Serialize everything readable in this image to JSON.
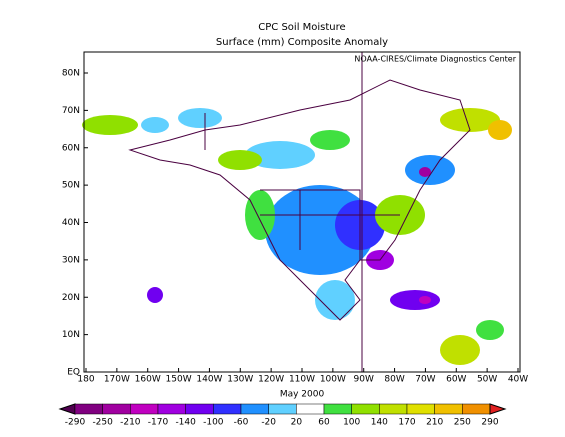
{
  "title": "CPC Soil Moisture",
  "subtitle": "Surface  (mm) Composite Anomaly",
  "credit": "NOAA-CIRES/Climate Diagnostics Center",
  "date": "May 2000",
  "lat_ticks": [
    "80N",
    "70N",
    "60N",
    "50N",
    "40N",
    "30N",
    "20N",
    "10N",
    "EQ"
  ],
  "lon_ticks": [
    "180",
    "170W",
    "160W",
    "150W",
    "140W",
    "130W",
    "120W",
    "110W",
    "100W",
    "90W",
    "80W",
    "70W",
    "60W",
    "50W",
    "40W"
  ],
  "colorbar": {
    "labels": [
      -290,
      -250,
      -210,
      -170,
      -140,
      -100,
      -60,
      -20,
      20,
      60,
      100,
      140,
      170,
      210,
      250,
      290
    ],
    "colors": [
      "#500050",
      "#800080",
      "#a000a0",
      "#c000c0",
      "#a000e0",
      "#7000f0",
      "#3030ff",
      "#2090ff",
      "#60d0ff",
      "#ffffff",
      "#40e040",
      "#90e000",
      "#c0e000",
      "#e0e000",
      "#f0c000",
      "#f09000",
      "#e02020"
    ]
  }
}
